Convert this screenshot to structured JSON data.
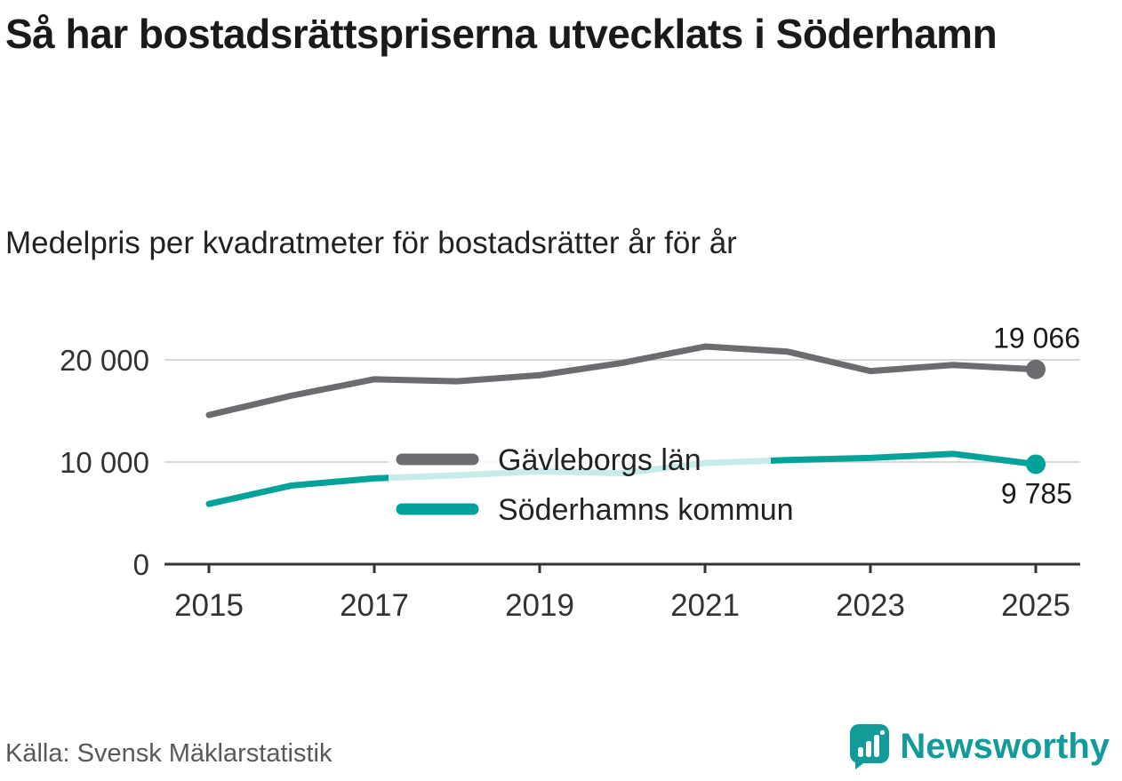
{
  "header": {
    "title": "Så har bostadsrättspriserna utvecklats i Söderhamn",
    "subtitle": "Medelpris per kvadratmeter för bostadsrätter år för år"
  },
  "footer": {
    "source": "Källa: Svensk Mäklarstatistik",
    "brand": "Newsworthy"
  },
  "colors": {
    "gray_series": "#6d6a70",
    "teal_series": "#00a29a",
    "grid": "#d9d9d9",
    "axis": "#333333",
    "tick_text": "#333333",
    "label_text": "#1a1a1a",
    "legend_text": "#222222",
    "brand_teal": "#129b99"
  },
  "chart_data": {
    "type": "line",
    "title": "Så har bostadsrättspriserna utvecklats i Söderhamn",
    "subtitle": "Medelpris per kvadratmeter för bostadsrätter år för år",
    "x": [
      2015,
      2016,
      2017,
      2018,
      2019,
      2020,
      2021,
      2022,
      2023,
      2024,
      2025
    ],
    "series": [
      {
        "name": "Gävleborgs län",
        "color": "#6d6a70",
        "values": [
          14600,
          16500,
          18100,
          17900,
          18500,
          19700,
          21300,
          20800,
          18900,
          19500,
          19066
        ]
      },
      {
        "name": "Söderhamns kommun",
        "color": "#00a29a",
        "values": [
          5900,
          7700,
          8400,
          8700,
          9100,
          8900,
          9900,
          10200,
          10400,
          10800,
          9785
        ]
      }
    ],
    "end_labels": [
      "19 066",
      "9 785"
    ],
    "yticks": [
      0,
      10000,
      20000
    ],
    "ytick_labels": [
      "0",
      "10 000",
      "20 000"
    ],
    "xticks": [
      2015,
      2017,
      2019,
      2021,
      2023,
      2025
    ],
    "xtick_labels": [
      "2015",
      "2017",
      "2019",
      "2021",
      "2023",
      "2025"
    ],
    "ylim": [
      0,
      22000
    ],
    "grid": true,
    "legend_position": "inside-center"
  }
}
